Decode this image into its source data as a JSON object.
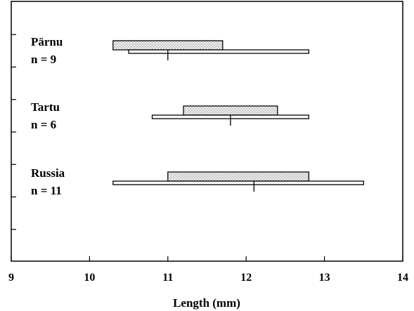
{
  "chart_data": {
    "type": "range-bar",
    "xlabel": "Length (mm)",
    "xlim": [
      9,
      14
    ],
    "x_ticks": [
      9,
      10,
      11,
      12,
      13,
      14
    ],
    "x_tick_labels": [
      "9",
      "10",
      "11",
      "12",
      "13",
      "14"
    ],
    "groups": [
      {
        "name": "Pärnu",
        "n_label": "n = 9",
        "range_dotted": [
          10.3,
          11.7
        ],
        "range_white": [
          10.5,
          12.8
        ],
        "mean": 11.0
      },
      {
        "name": "Tartu",
        "n_label": "n = 6",
        "range_dotted": [
          11.2,
          12.4
        ],
        "range_white": [
          10.8,
          12.8
        ],
        "mean": 11.8
      },
      {
        "name": "Russia",
        "n_label": "n = 11",
        "range_dotted": [
          11.0,
          12.8
        ],
        "range_white": [
          10.3,
          13.5
        ],
        "mean": 12.1
      }
    ],
    "colors": {
      "dotted_fill": "#e8e8e8",
      "white_fill": "#ffffff",
      "stroke": "#000000"
    }
  }
}
